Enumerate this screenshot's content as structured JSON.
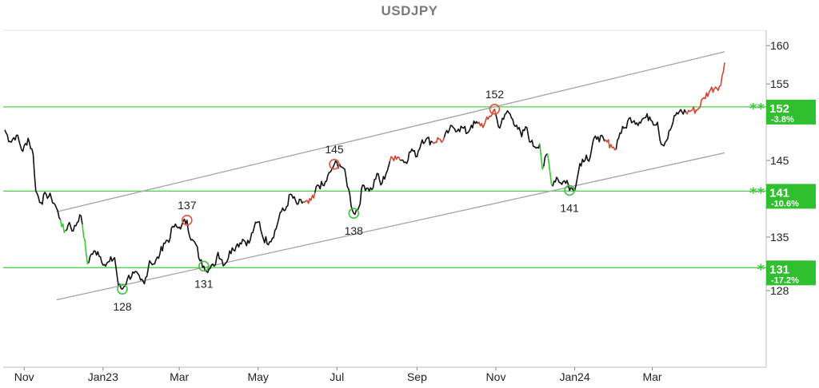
{
  "chart_data": {
    "type": "line",
    "title": "USDJPY",
    "x_ticks": [
      "Nov",
      "Jan23",
      "Mar",
      "May",
      "Jul",
      "Sep",
      "Nov",
      "Jan24",
      "Mar"
    ],
    "y_ticks": [
      160,
      155,
      145,
      135,
      128
    ],
    "ylim": [
      118,
      162
    ],
    "x_range": [
      "2022-10-17",
      "2024-04-26"
    ],
    "grid": false,
    "series": [
      {
        "values": [
          [
            "2022-10-17",
            149.0
          ],
          [
            "2022-10-21",
            147.5
          ],
          [
            "2022-10-26",
            148.3
          ],
          [
            "2022-10-31",
            146.2
          ],
          [
            "2022-11-04",
            147.9
          ],
          [
            "2022-11-08",
            145.8
          ],
          [
            "2022-11-10",
            141.0
          ],
          [
            "2022-11-14",
            139.5
          ],
          [
            "2022-11-18",
            140.6
          ],
          [
            "2022-11-22",
            140.1
          ],
          [
            "2022-11-25",
            139.2
          ],
          [
            "2022-11-29",
            137.3
          ],
          [
            "2022-12-02",
            135.6
          ],
          [
            "2022-12-06",
            136.9
          ],
          [
            "2022-12-09",
            135.8
          ],
          [
            "2022-12-14",
            137.9
          ],
          [
            "2022-12-16",
            136.7
          ],
          [
            "2022-12-20",
            131.5
          ],
          [
            "2022-12-23",
            132.8
          ],
          [
            "2022-12-28",
            133.1
          ],
          [
            "2023-01-03",
            131.2
          ],
          [
            "2023-01-06",
            131.8
          ],
          [
            "2023-01-10",
            132.3
          ],
          [
            "2023-01-13",
            128.6
          ],
          [
            "2023-01-16",
            128.2
          ],
          [
            "2023-01-20",
            129.6
          ],
          [
            "2023-01-25",
            130.3
          ],
          [
            "2023-01-30",
            129.4
          ],
          [
            "2023-02-02",
            128.9
          ],
          [
            "2023-02-06",
            131.9
          ],
          [
            "2023-02-10",
            131.5
          ],
          [
            "2023-02-14",
            132.8
          ],
          [
            "2023-02-17",
            134.2
          ],
          [
            "2023-02-22",
            134.9
          ],
          [
            "2023-02-24",
            136.4
          ],
          [
            "2023-02-28",
            136.2
          ],
          [
            "2023-03-03",
            136.6
          ],
          [
            "2023-03-07",
            137.2
          ],
          [
            "2023-03-10",
            134.6
          ],
          [
            "2023-03-14",
            134.0
          ],
          [
            "2023-03-17",
            131.9
          ],
          [
            "2023-03-20",
            131.2
          ],
          [
            "2023-03-24",
            130.8
          ],
          [
            "2023-03-28",
            131.2
          ],
          [
            "2023-03-31",
            133.0
          ],
          [
            "2023-04-05",
            131.4
          ],
          [
            "2023-04-11",
            133.6
          ],
          [
            "2023-04-14",
            133.8
          ],
          [
            "2023-04-19",
            134.7
          ],
          [
            "2023-04-24",
            134.2
          ],
          [
            "2023-04-28",
            136.3
          ],
          [
            "2023-05-02",
            137.0
          ],
          [
            "2023-05-05",
            134.8
          ],
          [
            "2023-05-10",
            134.4
          ],
          [
            "2023-05-15",
            136.1
          ],
          [
            "2023-05-18",
            138.2
          ],
          [
            "2023-05-22",
            138.5
          ],
          [
            "2023-05-26",
            140.6
          ],
          [
            "2023-05-31",
            139.3
          ],
          [
            "2023-06-05",
            139.6
          ],
          [
            "2023-06-09",
            139.4
          ],
          [
            "2023-06-13",
            140.1
          ],
          [
            "2023-06-16",
            141.8
          ],
          [
            "2023-06-21",
            141.7
          ],
          [
            "2023-06-26",
            143.5
          ],
          [
            "2023-06-29",
            144.5
          ],
          [
            "2023-07-03",
            144.5
          ],
          [
            "2023-07-06",
            144.0
          ],
          [
            "2023-07-10",
            141.3
          ],
          [
            "2023-07-13",
            138.5
          ],
          [
            "2023-07-14",
            138.1
          ],
          [
            "2023-07-18",
            138.9
          ],
          [
            "2023-07-21",
            141.8
          ],
          [
            "2023-07-25",
            141.4
          ],
          [
            "2023-07-28",
            141.2
          ],
          [
            "2023-08-01",
            143.3
          ],
          [
            "2023-08-04",
            141.8
          ],
          [
            "2023-08-08",
            143.3
          ],
          [
            "2023-08-11",
            144.9
          ],
          [
            "2023-08-15",
            145.6
          ],
          [
            "2023-08-18",
            145.4
          ],
          [
            "2023-08-23",
            144.8
          ],
          [
            "2023-08-28",
            146.5
          ],
          [
            "2023-08-31",
            145.5
          ],
          [
            "2023-09-05",
            147.7
          ],
          [
            "2023-09-08",
            147.8
          ],
          [
            "2023-09-13",
            147.4
          ],
          [
            "2023-09-18",
            147.8
          ],
          [
            "2023-09-21",
            147.6
          ],
          [
            "2023-09-26",
            149.0
          ],
          [
            "2023-09-29",
            149.3
          ],
          [
            "2023-10-03",
            149.1
          ],
          [
            "2023-10-06",
            149.3
          ],
          [
            "2023-10-10",
            148.6
          ],
          [
            "2023-10-13",
            149.6
          ],
          [
            "2023-10-18",
            149.8
          ],
          [
            "2023-10-23",
            149.7
          ],
          [
            "2023-10-26",
            150.4
          ],
          [
            "2023-10-31",
            151.7
          ],
          [
            "2023-11-01",
            151.0
          ],
          [
            "2023-11-03",
            149.4
          ],
          [
            "2023-11-07",
            150.4
          ],
          [
            "2023-11-10",
            151.5
          ],
          [
            "2023-11-14",
            150.4
          ],
          [
            "2023-11-17",
            149.6
          ],
          [
            "2023-11-21",
            148.1
          ],
          [
            "2023-11-24",
            149.4
          ],
          [
            "2023-11-28",
            147.4
          ],
          [
            "2023-12-01",
            146.8
          ],
          [
            "2023-12-05",
            147.2
          ],
          [
            "2023-12-07",
            143.9
          ],
          [
            "2023-12-11",
            145.9
          ],
          [
            "2023-12-14",
            141.9
          ],
          [
            "2023-12-18",
            142.8
          ],
          [
            "2023-12-21",
            142.1
          ],
          [
            "2023-12-26",
            142.4
          ],
          [
            "2023-12-28",
            141.1
          ],
          [
            "2024-01-02",
            141.8
          ],
          [
            "2024-01-05",
            144.6
          ],
          [
            "2024-01-10",
            145.7
          ],
          [
            "2024-01-12",
            144.9
          ],
          [
            "2024-01-17",
            148.2
          ],
          [
            "2024-01-19",
            148.1
          ],
          [
            "2024-01-24",
            147.5
          ],
          [
            "2024-01-29",
            147.1
          ],
          [
            "2024-02-01",
            146.4
          ],
          [
            "2024-02-05",
            148.6
          ],
          [
            "2024-02-09",
            149.3
          ],
          [
            "2024-02-13",
            150.6
          ],
          [
            "2024-02-16",
            150.2
          ],
          [
            "2024-02-20",
            150.0
          ],
          [
            "2024-02-23",
            150.5
          ],
          [
            "2024-02-28",
            150.7
          ],
          [
            "2024-03-01",
            150.1
          ],
          [
            "2024-03-05",
            150.0
          ],
          [
            "2024-03-08",
            147.1
          ],
          [
            "2024-03-12",
            147.6
          ],
          [
            "2024-03-15",
            149.0
          ],
          [
            "2024-03-19",
            150.9
          ],
          [
            "2024-03-22",
            151.4
          ],
          [
            "2024-03-27",
            151.3
          ],
          [
            "2024-04-01",
            151.6
          ],
          [
            "2024-04-05",
            151.6
          ],
          [
            "2024-04-10",
            153.2
          ],
          [
            "2024-04-15",
            154.2
          ],
          [
            "2024-04-19",
            154.6
          ],
          [
            "2024-04-23",
            154.8
          ],
          [
            "2024-04-26",
            157.8
          ]
        ]
      }
    ],
    "channel_lines": [
      {
        "from": [
          "2022-11-26",
          138.3
        ],
        "to": [
          "2024-04-26",
          159.2
        ]
      },
      {
        "from": [
          "2022-11-26",
          126.8
        ],
        "to": [
          "2024-04-26",
          146.0
        ]
      }
    ],
    "levels": [
      {
        "value": 152,
        "label": "152",
        "pct": "-3.8%",
        "stars": "**"
      },
      {
        "value": 141,
        "label": "141",
        "pct": "-10.6%",
        "stars": "**"
      },
      {
        "value": 131,
        "label": "131",
        "pct": "-17.2%",
        "stars": "*"
      }
    ],
    "annotations": [
      {
        "date": "2023-01-16",
        "value": 128.2,
        "label": "128",
        "kind": "low"
      },
      {
        "date": "2023-03-07",
        "value": 137.2,
        "label": "137",
        "kind": "high"
      },
      {
        "date": "2023-03-20",
        "value": 131.2,
        "label": "131",
        "kind": "low"
      },
      {
        "date": "2023-06-29",
        "value": 144.5,
        "label": "145",
        "kind": "high"
      },
      {
        "date": "2023-07-14",
        "value": 138.1,
        "label": "138",
        "kind": "low"
      },
      {
        "date": "2023-10-31",
        "value": 151.7,
        "label": "152",
        "kind": "high"
      },
      {
        "date": "2023-12-28",
        "value": 141.1,
        "label": "141",
        "kind": "low"
      }
    ],
    "colors": {
      "price": "#111111",
      "up_segment": "#d4452b",
      "down_segment": "#35c935",
      "channel": "#a8a8a8",
      "level": "#4dcf4d",
      "level_box": "#2fbf2f",
      "high_marker": "#e0533d",
      "low_marker": "#3fc23f",
      "axis": "#bbbbbb"
    },
    "red_ranges": [
      [
        "2023-06-05",
        "2023-06-13"
      ],
      [
        "2023-08-11",
        "2023-08-18"
      ],
      [
        "2023-09-13",
        "2023-09-21"
      ],
      [
        "2023-10-18",
        "2023-10-31"
      ],
      [
        "2024-01-24",
        "2024-02-01"
      ],
      [
        "2024-03-27",
        "2024-04-26"
      ]
    ],
    "green_ranges": [
      [
        "2022-11-29",
        "2022-12-02"
      ],
      [
        "2022-12-16",
        "2022-12-20"
      ],
      [
        "2023-12-05",
        "2023-12-07"
      ],
      [
        "2023-12-11",
        "2023-12-14"
      ]
    ]
  }
}
